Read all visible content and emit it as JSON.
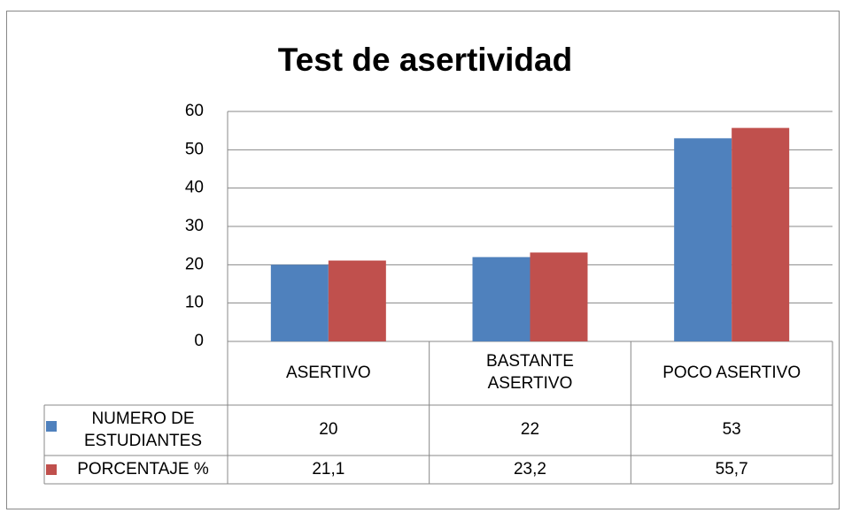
{
  "chart_data": {
    "type": "bar",
    "title": "Test de asertividad",
    "categories": [
      "ASERTIVO",
      "BASTANTE ASERTIVO",
      "POCO ASERTIVO"
    ],
    "series": [
      {
        "name": "NUMERO DE ESTUDIANTES",
        "color": "#4f81bd",
        "values": [
          20,
          22,
          53
        ]
      },
      {
        "name": "PORCENTAJE %",
        "color": "#c0504d",
        "values": [
          21.1,
          23.2,
          55.7
        ],
        "value_labels": [
          "21,1",
          "23,2",
          "55,7"
        ]
      }
    ],
    "ylim": [
      0,
      60
    ],
    "yticks": [
      0,
      10,
      20,
      30,
      40,
      50,
      60
    ],
    "grid": true
  }
}
